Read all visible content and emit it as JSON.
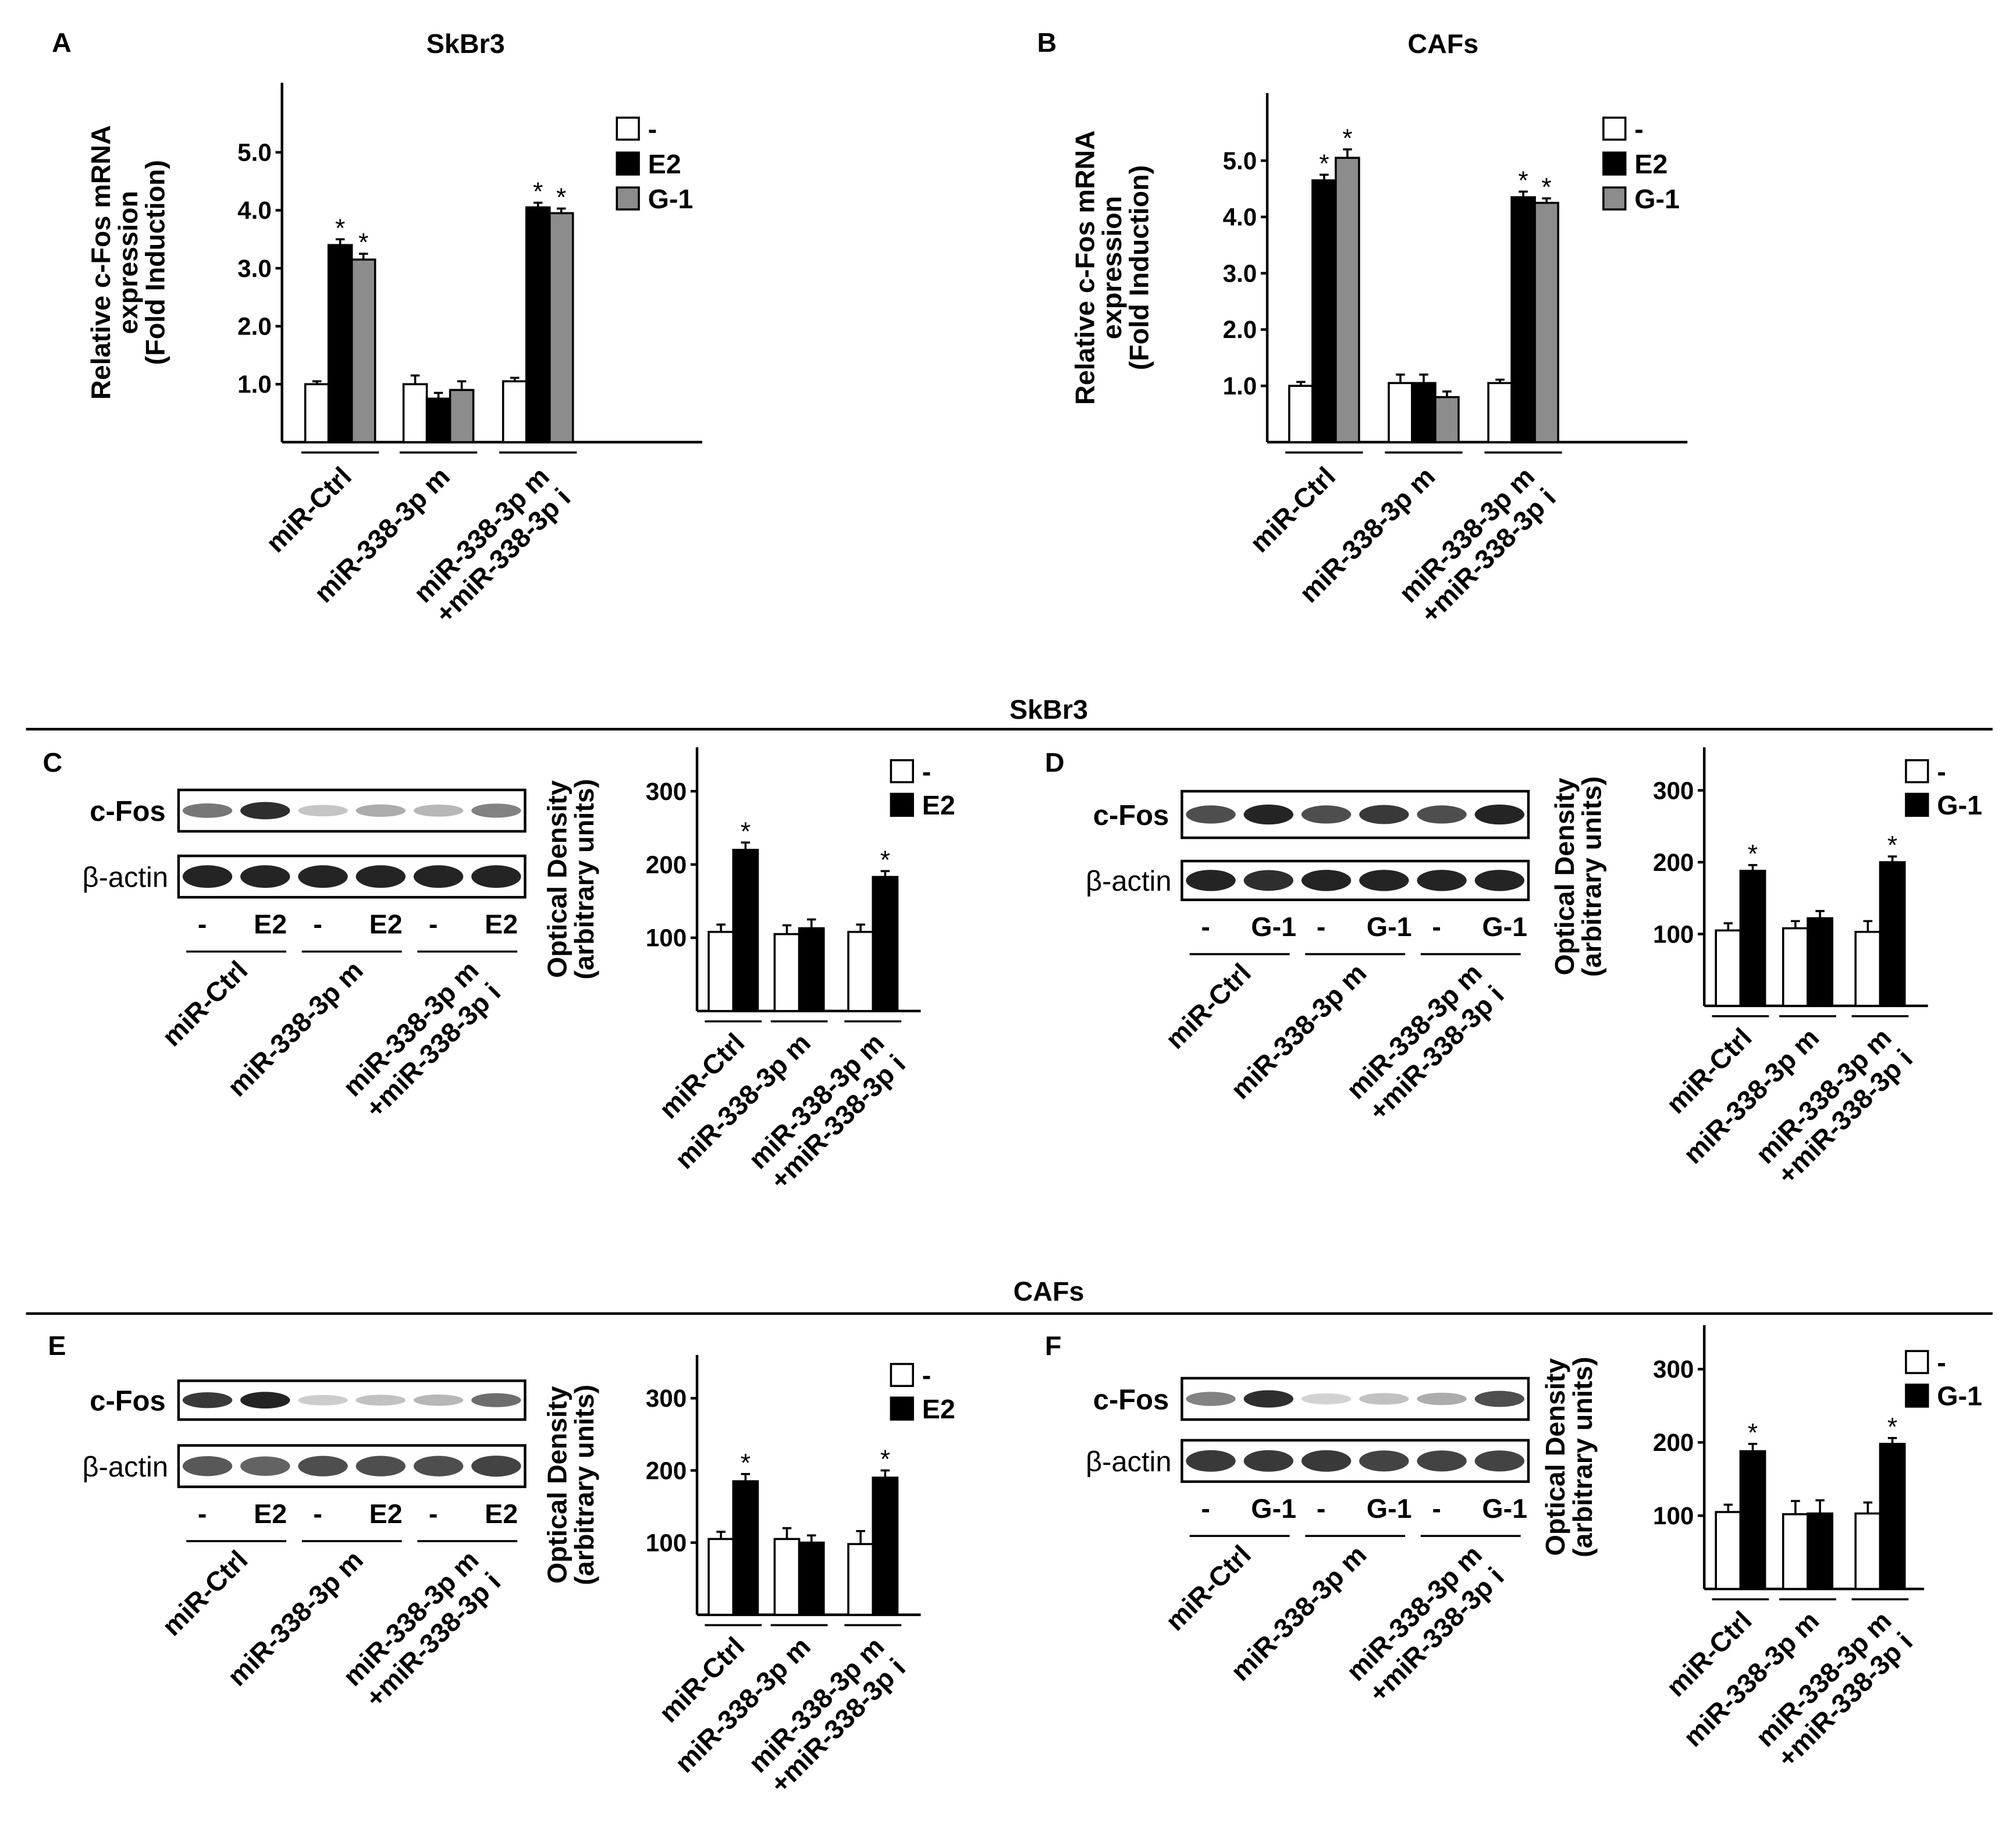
{
  "colors": {
    "none": "#ffffff",
    "e2": "#000000",
    "g1": "#8c8c8c",
    "axis": "#000000"
  },
  "section_labels": {
    "skbr3": "SkBr3",
    "cafs": "CAFs"
  },
  "group_labels": {
    "ctrl": [
      "miR-Ctrl"
    ],
    "mimic": [
      "miR-338-3p m"
    ],
    "combo": [
      "miR-338-3p m",
      "+miR-338-3p i"
    ]
  },
  "blot_labels": {
    "cfos": "c-Fos",
    "actin": "β-actin"
  },
  "qpcr_ylabel": [
    "Relative c-Fos mRNA",
    "expression",
    "(Fold Induction)"
  ],
  "od_ylabel": [
    "Optical Density",
    "(arbitrary units)"
  ],
  "sig_mark": "*",
  "chart_data": [
    {
      "panel": "A",
      "title": "SkBr3",
      "type": "bar",
      "ylim": [
        0,
        6.2
      ],
      "yticks": [
        "1.0",
        "2.0",
        "3.0",
        "4.0",
        "5.0"
      ],
      "legend": [
        {
          "label": "-",
          "color": "#ffffff"
        },
        {
          "label": "E2",
          "color": "#000000"
        },
        {
          "label": "G-1",
          "color": "#8c8c8c"
        }
      ],
      "categories": [
        "miR-Ctrl",
        "miR-338-3p m",
        "miR-338-3p m +miR-338-3p i"
      ],
      "series": [
        {
          "name": "-",
          "values": [
            1.0,
            1.0,
            1.05
          ],
          "errors": [
            0.05,
            0.15,
            0.06
          ],
          "sig": [
            false,
            false,
            false
          ]
        },
        {
          "name": "E2",
          "values": [
            3.4,
            0.75,
            4.05
          ],
          "errors": [
            0.1,
            0.1,
            0.08
          ],
          "sig": [
            true,
            false,
            true
          ]
        },
        {
          "name": "G-1",
          "values": [
            3.15,
            0.9,
            3.95
          ],
          "errors": [
            0.1,
            0.15,
            0.08
          ],
          "sig": [
            true,
            false,
            true
          ]
        }
      ]
    },
    {
      "panel": "B",
      "title": "CAFs",
      "type": "bar",
      "ylim": [
        0,
        6.2
      ],
      "yticks": [
        "1.0",
        "2.0",
        "3.0",
        "4.0",
        "5.0"
      ],
      "legend": [
        {
          "label": "-",
          "color": "#ffffff"
        },
        {
          "label": "E2",
          "color": "#000000"
        },
        {
          "label": "G-1",
          "color": "#8c8c8c"
        }
      ],
      "categories": [
        "miR-Ctrl",
        "miR-338-3p m",
        "miR-338-3p m +miR-338-3p i"
      ],
      "series": [
        {
          "name": "-",
          "values": [
            1.0,
            1.05,
            1.05
          ],
          "errors": [
            0.07,
            0.15,
            0.06
          ],
          "sig": [
            false,
            false,
            false
          ]
        },
        {
          "name": "E2",
          "values": [
            4.65,
            1.05,
            4.35
          ],
          "errors": [
            0.1,
            0.15,
            0.1
          ],
          "sig": [
            true,
            false,
            true
          ]
        },
        {
          "name": "G-1",
          "values": [
            5.05,
            0.8,
            4.25
          ],
          "errors": [
            0.15,
            0.1,
            0.08
          ],
          "sig": [
            true,
            false,
            true
          ]
        }
      ]
    },
    {
      "panel": "C",
      "type": "bar",
      "ylim": [
        0,
        360
      ],
      "yticks": [
        "100",
        "200",
        "300"
      ],
      "lanes": [
        "-",
        "E2",
        "-",
        "E2",
        "-",
        "E2"
      ],
      "cfos_intensity": [
        0.55,
        0.9,
        0.18,
        0.3,
        0.25,
        0.5
      ],
      "actin_intensity": [
        0.95,
        0.95,
        0.95,
        0.95,
        0.95,
        0.95
      ],
      "legend": [
        {
          "label": "-",
          "color": "#ffffff"
        },
        {
          "label": "E2",
          "color": "#000000"
        }
      ],
      "categories": [
        "miR-Ctrl",
        "miR-338-3p m",
        "miR-338-3p m +miR-338-3p i"
      ],
      "series": [
        {
          "name": "-",
          "values": [
            108,
            105,
            108
          ],
          "errors": [
            10,
            12,
            10
          ],
          "sig": [
            false,
            false,
            false
          ]
        },
        {
          "name": "E2",
          "values": [
            220,
            113,
            183
          ],
          "errors": [
            10,
            12,
            8
          ],
          "sig": [
            true,
            false,
            true
          ]
        }
      ]
    },
    {
      "panel": "D",
      "type": "bar",
      "ylim": [
        0,
        360
      ],
      "yticks": [
        "100",
        "200",
        "300"
      ],
      "lanes": [
        "-",
        "G-1",
        "-",
        "G-1",
        "-",
        "G-1"
      ],
      "cfos_intensity": [
        0.75,
        0.95,
        0.75,
        0.85,
        0.75,
        0.95
      ],
      "actin_intensity": [
        0.95,
        0.9,
        0.95,
        0.95,
        0.95,
        0.95
      ],
      "legend": [
        {
          "label": "-",
          "color": "#ffffff"
        },
        {
          "label": "G-1",
          "color": "#000000"
        }
      ],
      "categories": [
        "miR-Ctrl",
        "miR-338-3p m",
        "miR-338-3p m +miR-338-3p i"
      ],
      "series": [
        {
          "name": "-",
          "values": [
            105,
            108,
            103
          ],
          "errors": [
            10,
            10,
            15
          ],
          "sig": [
            false,
            false,
            false
          ]
        },
        {
          "name": "G-1",
          "values": [
            188,
            122,
            200
          ],
          "errors": [
            8,
            10,
            8
          ],
          "sig": [
            true,
            false,
            true
          ]
        }
      ]
    },
    {
      "panel": "E",
      "type": "bar",
      "ylim": [
        0,
        360
      ],
      "yticks": [
        "100",
        "200",
        "300"
      ],
      "lanes": [
        "-",
        "E2",
        "-",
        "E2",
        "-",
        "E2"
      ],
      "cfos_intensity": [
        0.85,
        0.95,
        0.15,
        0.2,
        0.25,
        0.6
      ],
      "actin_intensity": [
        0.7,
        0.65,
        0.75,
        0.75,
        0.75,
        0.8
      ],
      "legend": [
        {
          "label": "-",
          "color": "#ffffff"
        },
        {
          "label": "E2",
          "color": "#000000"
        }
      ],
      "categories": [
        "miR-Ctrl",
        "miR-338-3p m",
        "miR-338-3p m +miR-338-3p i"
      ],
      "series": [
        {
          "name": "-",
          "values": [
            105,
            105,
            98
          ],
          "errors": [
            10,
            15,
            18
          ],
          "sig": [
            false,
            false,
            false
          ]
        },
        {
          "name": "E2",
          "values": [
            185,
            100,
            190
          ],
          "errors": [
            10,
            10,
            10
          ],
          "sig": [
            true,
            false,
            true
          ]
        }
      ]
    },
    {
      "panel": "F",
      "type": "bar",
      "ylim": [
        0,
        360
      ],
      "yticks": [
        "100",
        "200",
        "300"
      ],
      "lanes": [
        "-",
        "G-1",
        "-",
        "G-1",
        "-",
        "G-1"
      ],
      "cfos_intensity": [
        0.5,
        0.9,
        0.12,
        0.2,
        0.3,
        0.75
      ],
      "actin_intensity": [
        0.85,
        0.85,
        0.85,
        0.8,
        0.8,
        0.8
      ],
      "legend": [
        {
          "label": "-",
          "color": "#ffffff"
        },
        {
          "label": "G-1",
          "color": "#000000"
        }
      ],
      "categories": [
        "miR-Ctrl",
        "miR-338-3p m",
        "miR-338-3p m +miR-338-3p i"
      ],
      "series": [
        {
          "name": "-",
          "values": [
            105,
            102,
            103
          ],
          "errors": [
            10,
            18,
            15
          ],
          "sig": [
            false,
            false,
            false
          ]
        },
        {
          "name": "G-1",
          "values": [
            188,
            103,
            198
          ],
          "errors": [
            10,
            18,
            8
          ],
          "sig": [
            true,
            false,
            true
          ]
        }
      ]
    }
  ]
}
